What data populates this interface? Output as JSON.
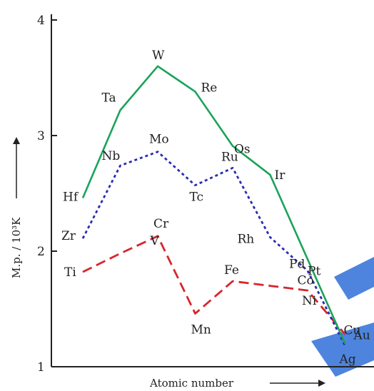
{
  "chart_data": {
    "type": "line",
    "xlabel": "Atomic number",
    "ylabel": "M.p. / 10³K",
    "ylim": [
      1,
      4
    ],
    "yticks": [
      "1",
      "2",
      "3",
      "4"
    ],
    "grid": false,
    "series": [
      {
        "color": "#d7262b",
        "dash": "dashed",
        "points": [
          {
            "label": "Ti",
            "x": 22,
            "y": 1.82
          },
          {
            "label": "V",
            "x": 23,
            "y": 1.98
          },
          {
            "label": "Cr",
            "x": 24,
            "y": 2.13
          },
          {
            "label": "Mn",
            "x": 25,
            "y": 1.46
          },
          {
            "label": "Fe",
            "x": 26,
            "y": 1.74
          },
          {
            "label": "Co",
            "x": 27,
            "y": 1.7
          },
          {
            "label": "Ni",
            "x": 28,
            "y": 1.66
          },
          {
            "label": "Cu",
            "x": 29,
            "y": 1.28
          }
        ]
      },
      {
        "color": "#2b2bb3",
        "dash": "dotted",
        "points": [
          {
            "label": "Zr",
            "x": 22,
            "y": 2.11
          },
          {
            "label": "Nb",
            "x": 23,
            "y": 2.74
          },
          {
            "label": "Mo",
            "x": 24,
            "y": 2.86
          },
          {
            "label": "Tc",
            "x": 25,
            "y": 2.57
          },
          {
            "label": "Ru",
            "x": 26,
            "y": 2.72
          },
          {
            "label": "Rh",
            "x": 27,
            "y": 2.12
          },
          {
            "label": "Pd",
            "x": 28,
            "y": 1.83
          },
          {
            "label": "Ag",
            "x": 29,
            "y": 1.18
          }
        ]
      },
      {
        "color": "#1aa35a",
        "dash": "solid",
        "points": [
          {
            "label": "Hf",
            "x": 22,
            "y": 2.46
          },
          {
            "label": "Ta",
            "x": 23,
            "y": 3.22
          },
          {
            "label": "W",
            "x": 24,
            "y": 3.6
          },
          {
            "label": "Re",
            "x": 25,
            "y": 3.38
          },
          {
            "label": "Os",
            "x": 26,
            "y": 2.91
          },
          {
            "label": "Ir",
            "x": 27,
            "y": 2.66
          },
          {
            "label": "Pt",
            "x": 28,
            "y": 1.93
          },
          {
            "label": "Au",
            "x": 29,
            "y": 1.2
          }
        ]
      }
    ]
  },
  "colors": {
    "axis": "#222222",
    "decor_blob": "#2f6fd8"
  }
}
